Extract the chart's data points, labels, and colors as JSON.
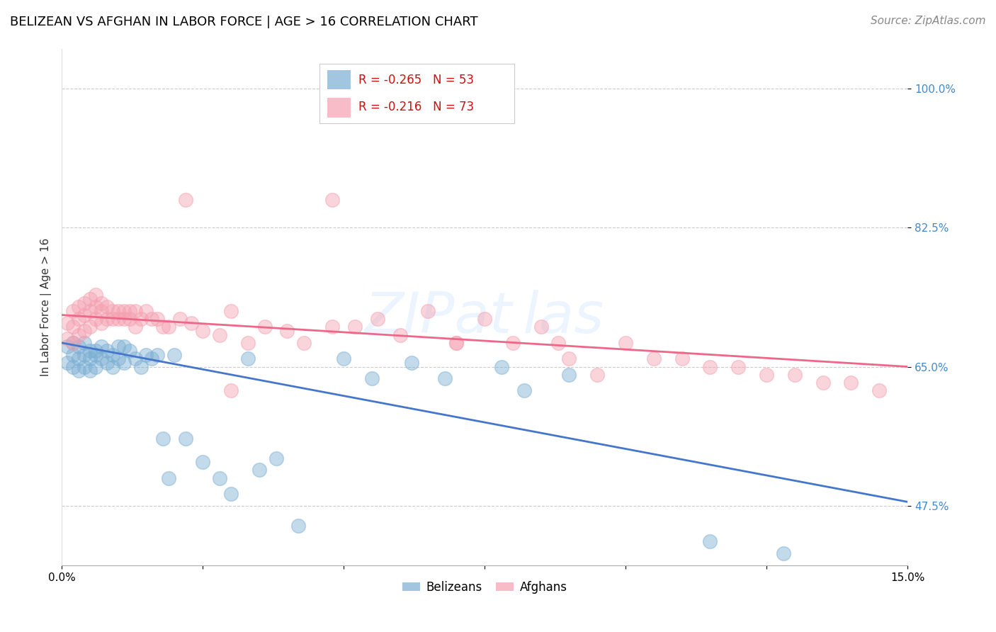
{
  "title": "BELIZEAN VS AFGHAN IN LABOR FORCE | AGE > 16 CORRELATION CHART",
  "source_text": "Source: ZipAtlas.com",
  "ylabel": "In Labor Force | Age > 16",
  "xlim": [
    0.0,
    0.15
  ],
  "ylim": [
    0.4,
    1.05
  ],
  "ytick_positions": [
    0.475,
    0.65,
    0.825,
    1.0
  ],
  "ytick_labels": [
    "47.5%",
    "65.0%",
    "82.5%",
    "100.0%"
  ],
  "belizean_color": "#7bafd4",
  "afghan_color": "#f4a0b0",
  "line_blue": "#4477cc",
  "line_pink": "#ee6688",
  "legend_r_blue": "R = -0.265",
  "legend_n_blue": "N = 53",
  "legend_r_pink": "R = -0.216",
  "legend_n_pink": "N = 73",
  "belizean_label": "Belizeans",
  "afghan_label": "Afghans",
  "belizean_x": [
    0.001,
    0.001,
    0.002,
    0.002,
    0.002,
    0.003,
    0.003,
    0.003,
    0.004,
    0.004,
    0.004,
    0.005,
    0.005,
    0.005,
    0.006,
    0.006,
    0.006,
    0.007,
    0.007,
    0.008,
    0.008,
    0.009,
    0.009,
    0.01,
    0.01,
    0.011,
    0.011,
    0.012,
    0.013,
    0.014,
    0.015,
    0.016,
    0.017,
    0.018,
    0.019,
    0.02,
    0.022,
    0.025,
    0.028,
    0.03,
    0.033,
    0.035,
    0.038,
    0.042,
    0.05,
    0.055,
    0.062,
    0.068,
    0.078,
    0.082,
    0.09,
    0.115,
    0.128
  ],
  "belizean_y": [
    0.675,
    0.655,
    0.68,
    0.665,
    0.65,
    0.675,
    0.66,
    0.645,
    0.68,
    0.665,
    0.65,
    0.67,
    0.66,
    0.645,
    0.67,
    0.665,
    0.65,
    0.675,
    0.66,
    0.67,
    0.655,
    0.665,
    0.65,
    0.675,
    0.66,
    0.675,
    0.655,
    0.67,
    0.66,
    0.65,
    0.665,
    0.66,
    0.665,
    0.56,
    0.51,
    0.665,
    0.56,
    0.53,
    0.51,
    0.49,
    0.66,
    0.52,
    0.535,
    0.45,
    0.66,
    0.635,
    0.655,
    0.635,
    0.65,
    0.62,
    0.64,
    0.43,
    0.415
  ],
  "afghan_x": [
    0.001,
    0.001,
    0.002,
    0.002,
    0.002,
    0.003,
    0.003,
    0.003,
    0.004,
    0.004,
    0.004,
    0.005,
    0.005,
    0.005,
    0.006,
    0.006,
    0.006,
    0.007,
    0.007,
    0.007,
    0.008,
    0.008,
    0.009,
    0.009,
    0.01,
    0.01,
    0.011,
    0.011,
    0.012,
    0.012,
    0.013,
    0.013,
    0.014,
    0.015,
    0.016,
    0.017,
    0.018,
    0.019,
    0.021,
    0.023,
    0.025,
    0.028,
    0.03,
    0.033,
    0.036,
    0.04,
    0.043,
    0.048,
    0.052,
    0.056,
    0.06,
    0.065,
    0.07,
    0.075,
    0.08,
    0.085,
    0.09,
    0.095,
    0.1,
    0.105,
    0.11,
    0.115,
    0.12,
    0.125,
    0.13,
    0.135,
    0.14,
    0.145,
    0.048,
    0.07,
    0.088,
    0.022,
    0.03
  ],
  "afghan_y": [
    0.705,
    0.685,
    0.72,
    0.7,
    0.68,
    0.725,
    0.71,
    0.69,
    0.73,
    0.715,
    0.695,
    0.735,
    0.72,
    0.7,
    0.74,
    0.725,
    0.71,
    0.73,
    0.72,
    0.705,
    0.725,
    0.71,
    0.72,
    0.71,
    0.72,
    0.71,
    0.72,
    0.71,
    0.72,
    0.71,
    0.72,
    0.7,
    0.71,
    0.72,
    0.71,
    0.71,
    0.7,
    0.7,
    0.71,
    0.705,
    0.695,
    0.69,
    0.72,
    0.68,
    0.7,
    0.695,
    0.68,
    0.7,
    0.7,
    0.71,
    0.69,
    0.72,
    0.68,
    0.71,
    0.68,
    0.7,
    0.66,
    0.64,
    0.68,
    0.66,
    0.66,
    0.65,
    0.65,
    0.64,
    0.64,
    0.63,
    0.63,
    0.62,
    0.86,
    0.68,
    0.68,
    0.86,
    0.62
  ],
  "title_fontsize": 13,
  "axis_label_fontsize": 11,
  "tick_fontsize": 11,
  "source_fontsize": 11,
  "legend_fontsize": 12
}
